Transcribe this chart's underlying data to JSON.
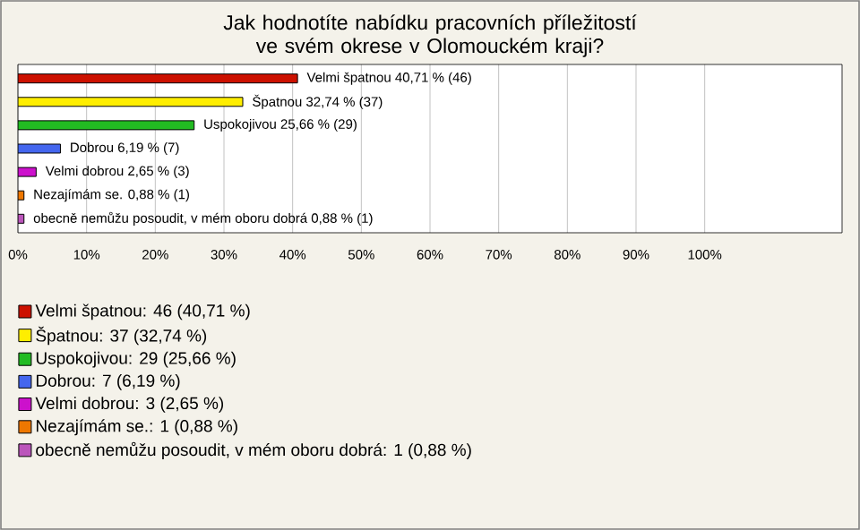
{
  "chart_data": {
    "type": "bar",
    "orientation": "horizontal",
    "title": "Jak hodnotíte nabídku pracovních příležitostí ve svém okrese v Olomouckém kraji?",
    "categories": [
      null,
      null,
      null,
      null,
      null,
      null,
      null
    ],
    "series": [
      {
        "name": "Velmi špatnou: 46 (40,71 %)",
        "color": "#cc1100",
        "values": [
          40.71,
          null,
          null,
          null,
          null,
          null,
          null
        ],
        "value_labels": [
          "Velmi špatnou 40,71 % (46)",
          null,
          null,
          null,
          null,
          null,
          null
        ]
      },
      {
        "name": "Špatnou: 37 (32,74 %)",
        "color": "#ffee00",
        "values": [
          null,
          32.74,
          null,
          null,
          null,
          null,
          null
        ],
        "value_labels": [
          null,
          "Špatnou 32,74 % (37)",
          null,
          null,
          null,
          null,
          null
        ]
      },
      {
        "name": "Uspokojivou: 29 (25,66 %)",
        "color": "#22bb22",
        "values": [
          null,
          null,
          25.66,
          null,
          null,
          null,
          null
        ],
        "value_labels": [
          null,
          null,
          "Uspokojivou 25,66 % (29)",
          null,
          null,
          null,
          null
        ]
      },
      {
        "name": "Dobrou: 7 (6,19 %)",
        "color": "#4466ee",
        "values": [
          null,
          null,
          null,
          6.19,
          null,
          null,
          null
        ],
        "value_labels": [
          null,
          null,
          null,
          "Dobrou 6,19 % (7)",
          null,
          null,
          null
        ]
      },
      {
        "name": "Velmi dobrou: 3 (2,65 %)",
        "color": "#cc11cc",
        "values": [
          null,
          null,
          null,
          null,
          2.65,
          null,
          null
        ],
        "value_labels": [
          null,
          null,
          null,
          null,
          "Velmi dobrou 2,65 % (3)",
          null,
          null
        ]
      },
      {
        "name": "Nezajímám se.: 1 (0,88 %)",
        "color": "#ee7700",
        "values": [
          null,
          null,
          null,
          null,
          null,
          0.88,
          null
        ],
        "value_labels": [
          null,
          null,
          null,
          null,
          null,
          "Nezajímám se. 0,88 % (1)",
          null
        ]
      },
      {
        "name": "obecně nemůžu posoudit, v mém oboru dobrá: 1 (0,88 %)",
        "color": "#bb55bb",
        "values": [
          null,
          null,
          null,
          null,
          null,
          null,
          0.88
        ],
        "value_labels": [
          null,
          null,
          null,
          null,
          null,
          null,
          "obecně nemůžu posoudit, v mém oboru dobrá 0,88 % (1)"
        ]
      }
    ],
    "xlim": [
      0,
      120
    ],
    "xticks": [
      {
        "value": 0,
        "label": "0%"
      },
      {
        "value": 10,
        "label": "10%"
      },
      {
        "value": 20,
        "label": "20%"
      },
      {
        "value": 30,
        "label": "30%"
      },
      {
        "value": 40,
        "label": "40%"
      },
      {
        "value": 50,
        "label": "50%"
      },
      {
        "value": 60,
        "label": "60%"
      },
      {
        "value": 70,
        "label": "70%"
      },
      {
        "value": 80,
        "label": "80%"
      },
      {
        "value": 90,
        "label": "90%"
      },
      {
        "value": 100,
        "label": "100%"
      }
    ],
    "grid": "x",
    "legend": "bottom"
  }
}
